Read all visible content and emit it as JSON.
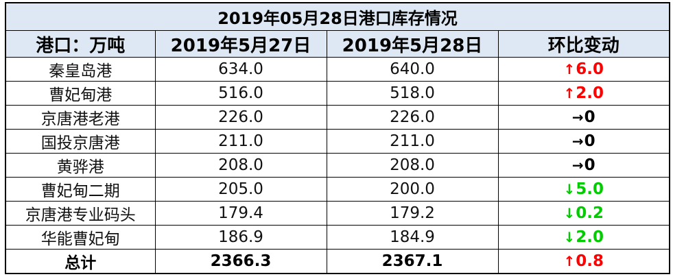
{
  "title": "2019年05月28日港口库存情况",
  "headers": [
    "港口：万吨",
    "2019年5月27日",
    "2019年5月28日",
    "环比变动"
  ],
  "colors": {
    "header_bg": "#dde8f4",
    "up": "#ff0000",
    "down": "#00cc00",
    "flat": "#000000"
  },
  "rows": [
    {
      "port": "秦皇岛港",
      "prev": "634.0",
      "curr": "640.0",
      "arrow": "↑",
      "change": "6.0",
      "dir": "up"
    },
    {
      "port": "曹妃甸港",
      "prev": "516.0",
      "curr": "518.0",
      "arrow": "↑",
      "change": "2.0",
      "dir": "up"
    },
    {
      "port": "京唐港老港",
      "prev": "226.0",
      "curr": "226.0",
      "arrow": "→",
      "change": "0",
      "dir": "flat"
    },
    {
      "port": "国投京唐港",
      "prev": "211.0",
      "curr": "211.0",
      "arrow": "→",
      "change": "0",
      "dir": "flat"
    },
    {
      "port": "黄骅港",
      "prev": "208.0",
      "curr": "208.0",
      "arrow": "→",
      "change": "0",
      "dir": "flat"
    },
    {
      "port": "曹妃甸二期",
      "prev": "205.0",
      "curr": "200.0",
      "arrow": "↓",
      "change": "5.0",
      "dir": "down"
    },
    {
      "port": "京唐港专业码头",
      "prev": "179.4",
      "curr": "179.2",
      "arrow": "↓",
      "change": "0.2",
      "dir": "down"
    },
    {
      "port": "华能曹妃甸",
      "prev": "186.9",
      "curr": "184.9",
      "arrow": "↓",
      "change": "2.0",
      "dir": "down"
    }
  ],
  "total": {
    "port": "总计",
    "prev": "2366.3",
    "curr": "2367.1",
    "arrow": "↑",
    "change": "0.8",
    "dir": "up"
  }
}
